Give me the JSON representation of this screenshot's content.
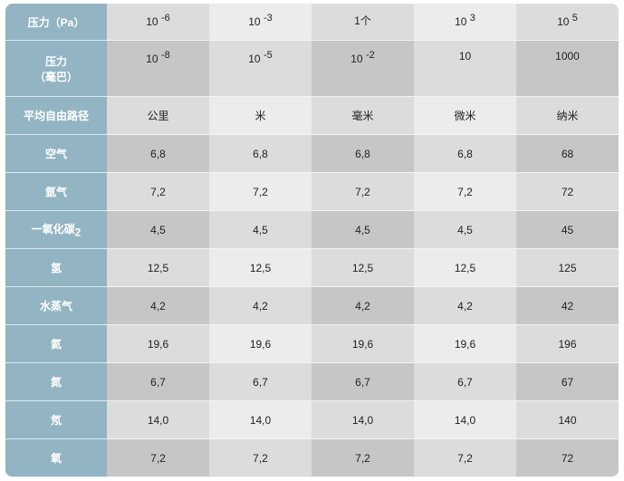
{
  "pressure_pa": {
    "label": "压力（Pa）",
    "values": [
      {
        "base": "10",
        "exp": "-6"
      },
      {
        "base": "10",
        "exp": "-3"
      },
      {
        "base": "1个",
        "exp": ""
      },
      {
        "base": "10",
        "exp": "3"
      },
      {
        "base": "10",
        "exp": "5"
      }
    ]
  },
  "pressure_mbar": {
    "label_line1": "压力",
    "label_line2": "（毫巴）",
    "values": [
      {
        "base": "10",
        "exp": "-8"
      },
      {
        "base": "10",
        "exp": "-5"
      },
      {
        "base": "10",
        "exp": "-2"
      },
      {
        "base": "10",
        "exp": ""
      },
      {
        "base": "1000",
        "exp": ""
      }
    ]
  },
  "mean_free_path": {
    "label": "平均自由路径",
    "values": [
      "公里",
      "米",
      "毫米",
      "微米",
      "纳米"
    ]
  },
  "rows": [
    {
      "label": "空气",
      "sub": "",
      "values": [
        "6,8",
        "6,8",
        "6,8",
        "6,8",
        "68"
      ]
    },
    {
      "label": "氩气",
      "sub": "",
      "values": [
        "7,2",
        "7,2",
        "7,2",
        "7,2",
        "72"
      ]
    },
    {
      "label": "一氧化碳",
      "sub": "2",
      "values": [
        "4,5",
        "4,5",
        "4,5",
        "4,5",
        "45"
      ]
    },
    {
      "label": "氢",
      "sub": "",
      "values": [
        "12,5",
        "12,5",
        "12,5",
        "12,5",
        "125"
      ]
    },
    {
      "label": "水蒸气",
      "sub": "",
      "values": [
        "4,2",
        "4,2",
        "4,2",
        "4,2",
        "42"
      ]
    },
    {
      "label": "氦",
      "sub": "",
      "values": [
        "19,6",
        "19,6",
        "19,6",
        "19,6",
        "196"
      ]
    },
    {
      "label": "氮",
      "sub": "",
      "values": [
        "6,7",
        "6,7",
        "6,7",
        "6,7",
        "67"
      ]
    },
    {
      "label": "氖",
      "sub": "",
      "values": [
        "14,0",
        "14,0",
        "14,0",
        "14,0",
        "140"
      ]
    },
    {
      "label": "氧",
      "sub": "",
      "values": [
        "7,2",
        "7,2",
        "7,2",
        "7,2",
        "72"
      ]
    }
  ]
}
